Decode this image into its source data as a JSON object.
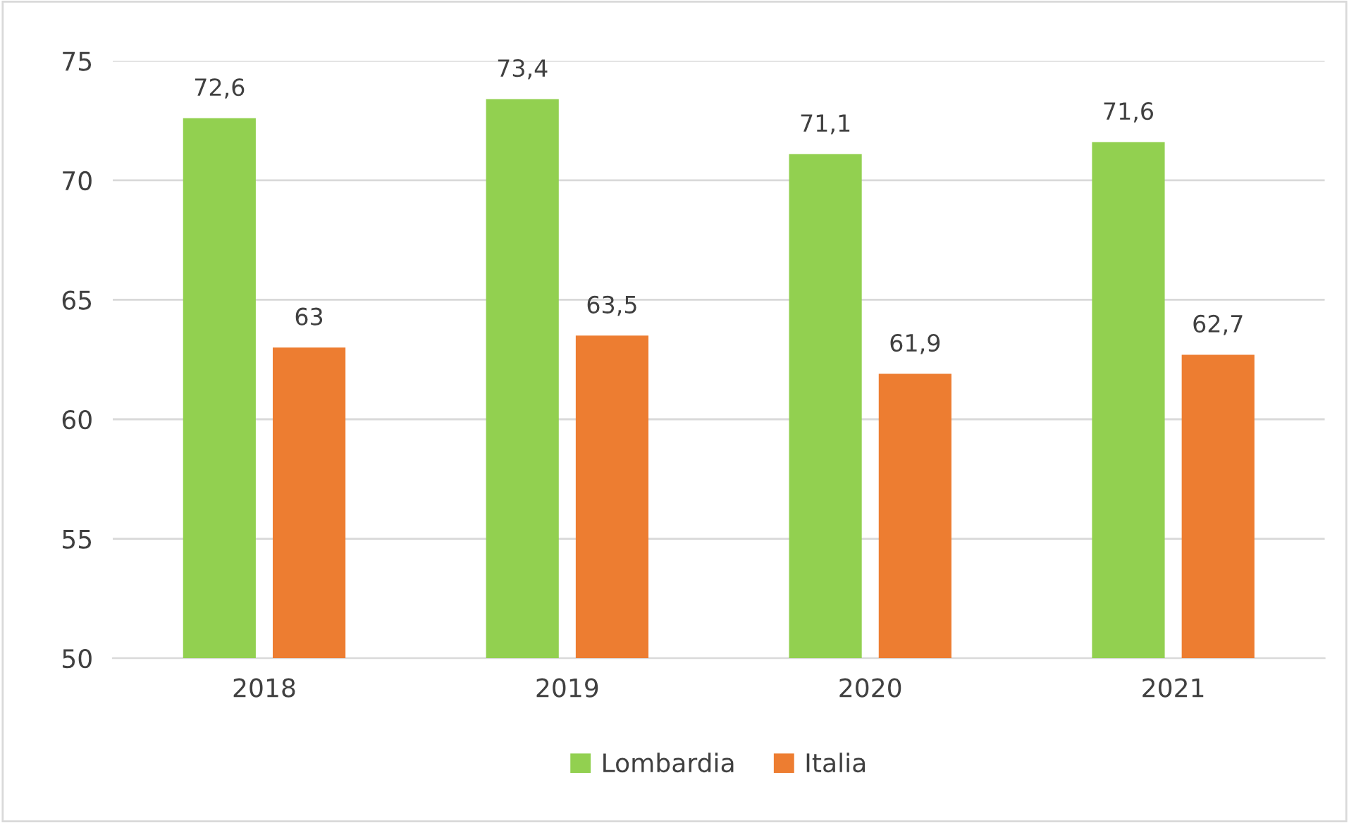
{
  "chart_data": {
    "type": "bar",
    "categories": [
      "2018",
      "2019",
      "2020",
      "2021"
    ],
    "series": [
      {
        "name": "Lombardia",
        "color": "#92d050",
        "values": [
          72.6,
          73.4,
          71.1,
          71.6
        ],
        "value_labels": [
          "72,6",
          "73,4",
          "71,1",
          "71,6"
        ]
      },
      {
        "name": "Italia",
        "color": "#ed7d31",
        "values": [
          63,
          63.5,
          61.9,
          62.7
        ],
        "value_labels": [
          "63",
          "63,5",
          "61,9",
          "62,7"
        ]
      }
    ],
    "ylim": [
      50,
      75
    ],
    "yticks": [
      50,
      55,
      60,
      65,
      70,
      75
    ],
    "grid": "y",
    "legend": "bottom"
  }
}
